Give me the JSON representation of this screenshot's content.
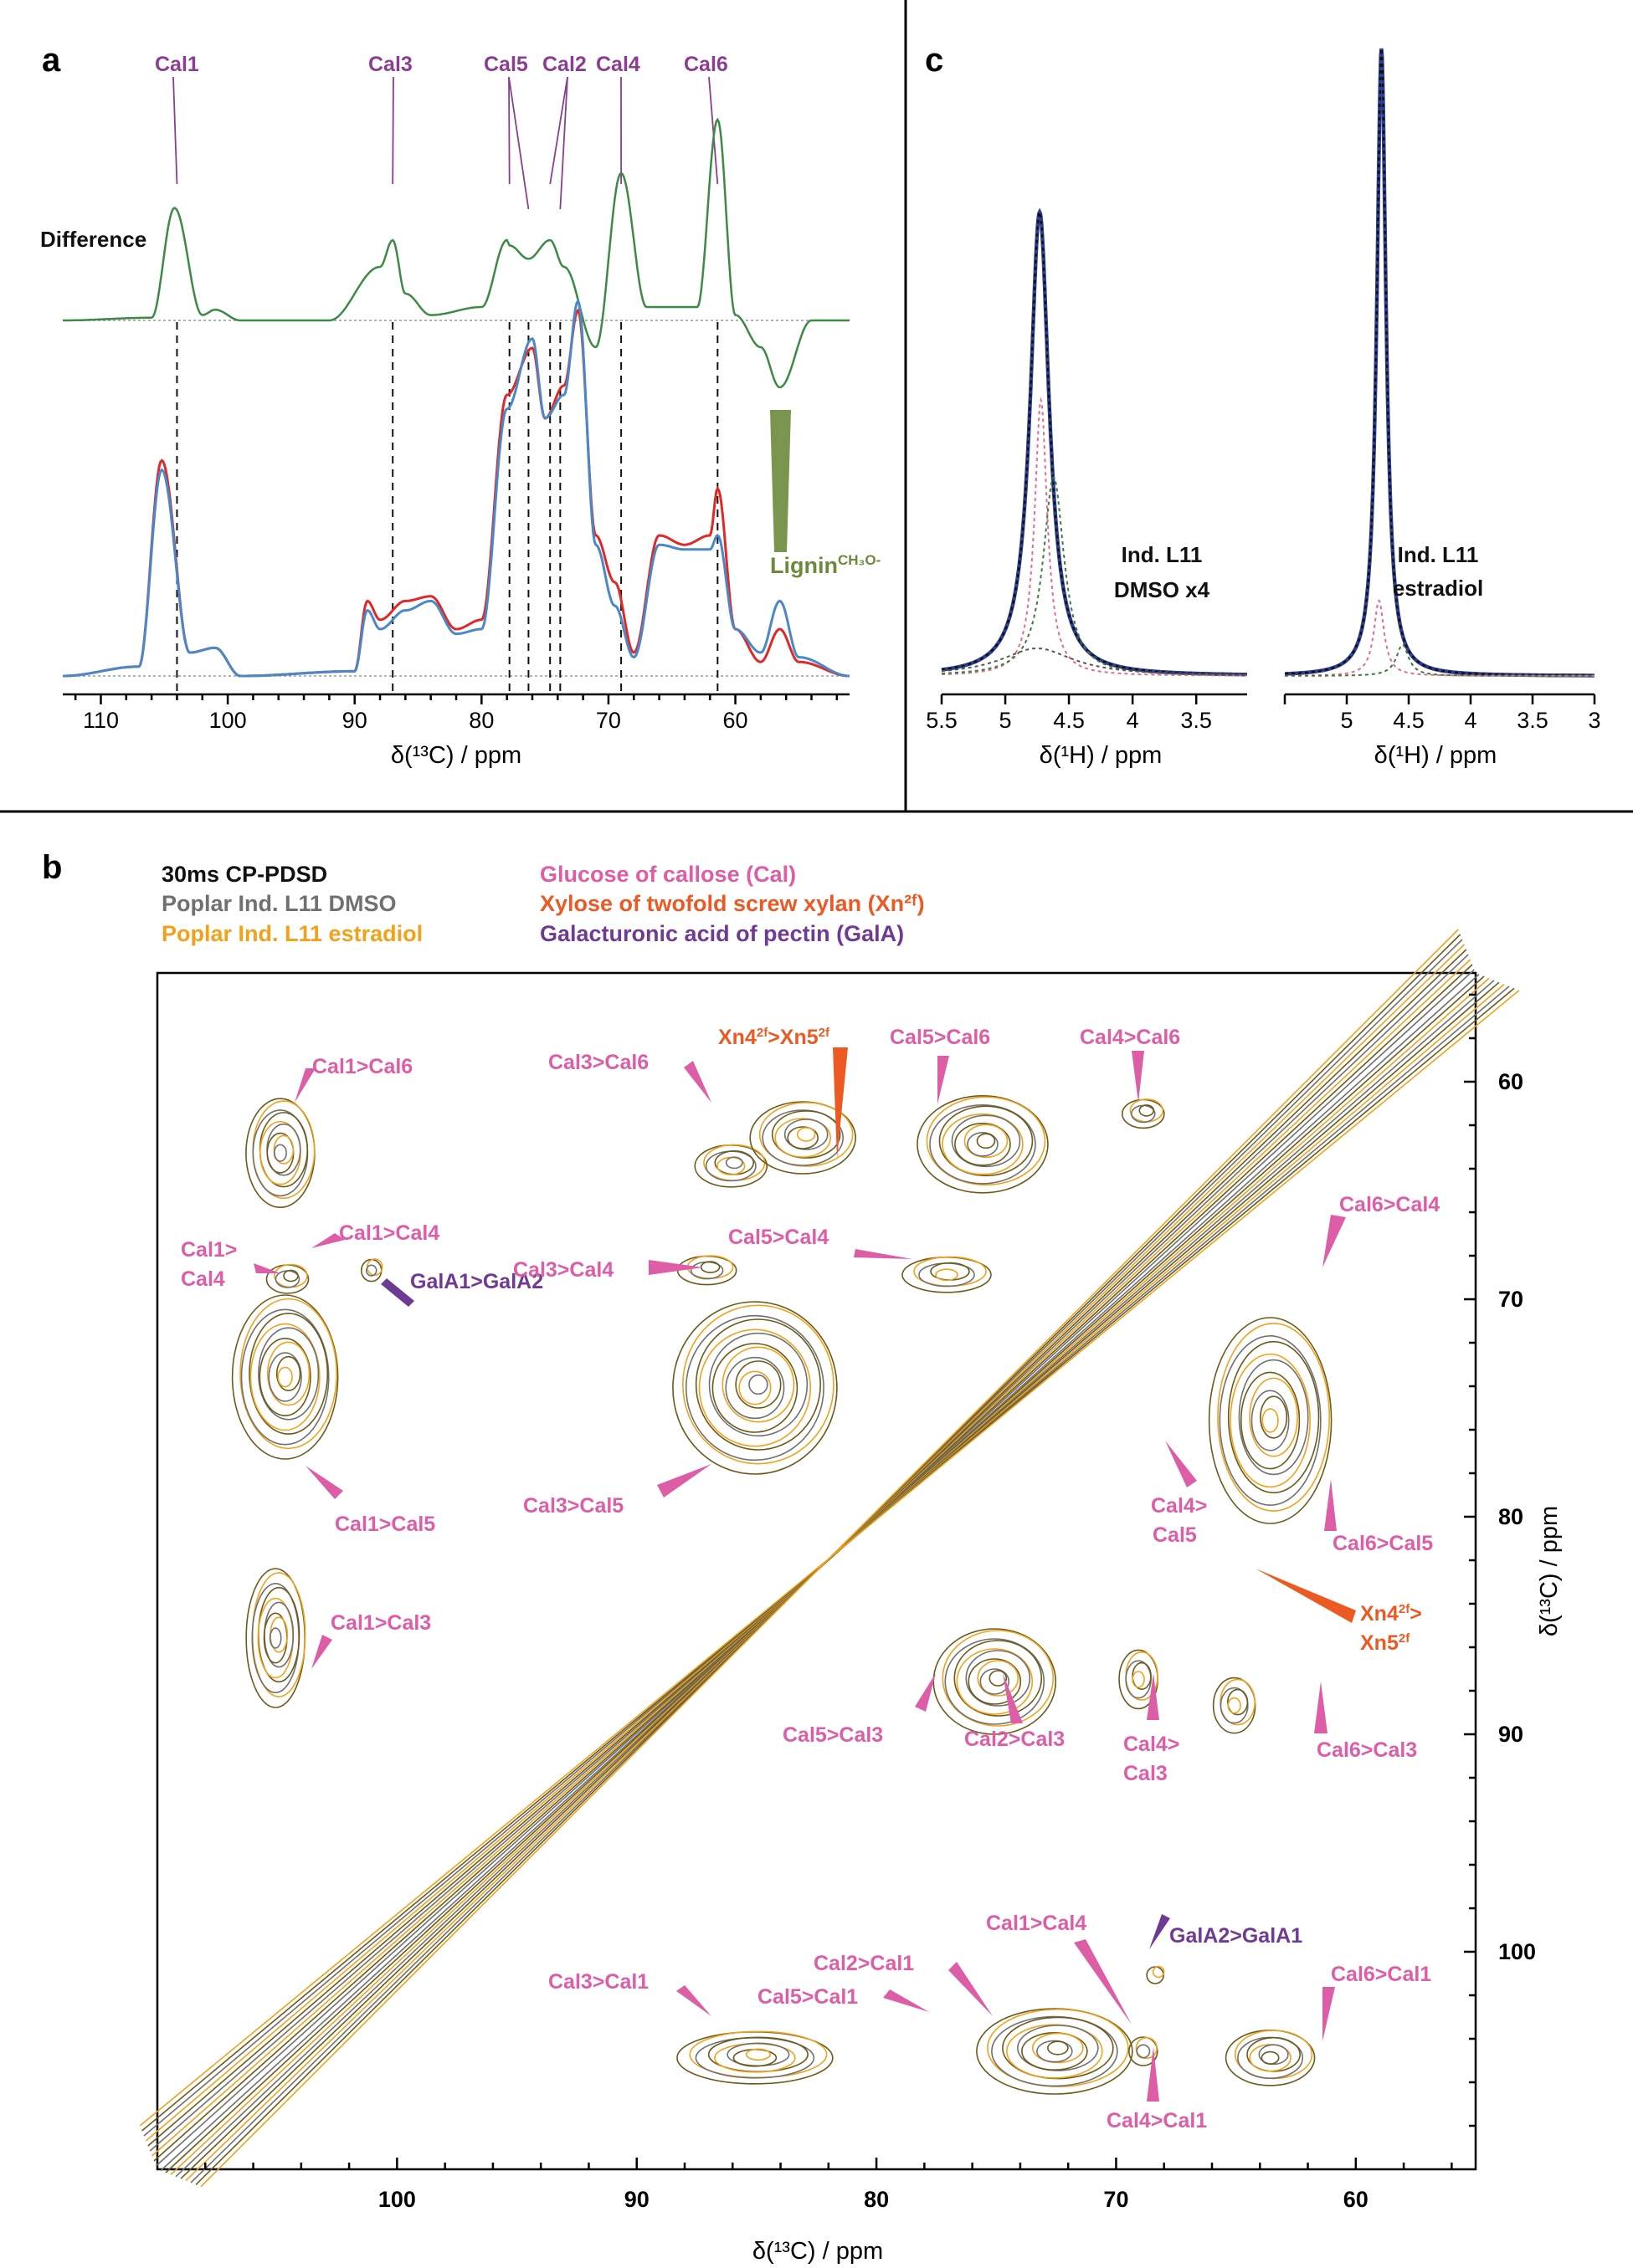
{
  "panel_a": {
    "letter": "a",
    "difference_label": "Difference",
    "lignin_label": "Lignin",
    "lignin_sup": "CH₃O-",
    "xlabel": "δ(¹³C) / ppm",
    "peak_labels": [
      "Cal1",
      "Cal3",
      "Cal5",
      "Cal2",
      "Cal4",
      "Cal6"
    ]
  },
  "panel_b": {
    "letter": "b",
    "legend": [
      {
        "text": "30ms CP-PDSD",
        "color": "#111111"
      },
      {
        "text": "Poplar Ind. L11 DMSO",
        "color": "#707070"
      },
      {
        "text": "Poplar Ind. L11 estradiol",
        "color": "#f1a21a"
      }
    ],
    "assignments": [
      {
        "text": "Glucose of callose (Cal)",
        "color": "#dd5da6"
      },
      {
        "text": "Xylose of twofold screw xylan (Xn²ᶠ)",
        "color": "#ec5a24"
      },
      {
        "text": "Galacturonic acid of pectin (GalA)",
        "color": "#6f3a94"
      }
    ],
    "xlabel": "δ(¹³C) / ppm",
    "ylabel": "δ(¹³C) / ppm",
    "crosspeaks": {
      "cal1_cal6": "Cal1>Cal6",
      "cal1_cal4": "Cal1>Cal4",
      "cal1_cal4_b1": "Cal1>",
      "cal1_cal4_b2": "Cal4",
      "gala1_gala2": "GalA1>GalA2",
      "cal1_cal5": "Cal1>Cal5",
      "cal1_cal3": "Cal1>Cal3",
      "cal3_cal6": "Cal3>Cal6",
      "xn_top_a": "Xn4",
      "xn_top_b": ">Xn5",
      "xn_sup": "2f",
      "cal5_cal6": "Cal5>Cal6",
      "cal4_cal6": "Cal4>Cal6",
      "cal6_cal4": "Cal6>Cal4",
      "cal3_cal4": "Cal3>Cal4",
      "cal5_cal4": "Cal5>Cal4",
      "cal3_cal5": "Cal3>Cal5",
      "cal4_cal5_a": "Cal4>",
      "cal4_cal5_b": "Cal5",
      "cal6_cal5": "Cal6>Cal5",
      "xn_right_a": "Xn4",
      "xn_right_b": "Xn5",
      "cal5_cal3": "Cal5>Cal3",
      "cal2_cal3": "Cal2>Cal3",
      "cal4_cal3_a": "Cal4>",
      "cal4_cal3_b": "Cal3",
      "cal6_cal3": "Cal6>Cal3",
      "cal1_cal4_low": "Cal1>Cal4",
      "gala2_gala1": "GalA2>GalA1",
      "cal2_cal1": "Cal2>Cal1",
      "cal3_cal1": "Cal3>Cal1",
      "cal5_cal1": "Cal5>Cal1",
      "cal6_cal1": "Cal6>Cal1",
      "cal4_cal1": "Cal4>Cal1"
    }
  },
  "panel_c": {
    "letter": "c",
    "xlabel": "δ(¹H) / ppm",
    "left_label": [
      "Ind. L11",
      "DMSO x4"
    ],
    "right_label": [
      "Ind. L11",
      "estradiol"
    ]
  },
  "chart_data": [
    {
      "type": "line",
      "panel": "a",
      "xlabel": "δ(¹³C) / ppm",
      "xlim": [
        113,
        51
      ],
      "xticks": [
        110,
        100,
        90,
        80,
        70,
        60
      ],
      "peak_positions": {
        "Cal1": 104.0,
        "Cal3": 87.0,
        "Cal5": 77.8,
        "Cal2": 74.6,
        "Cal4": 69.0,
        "Cal6": 61.4
      },
      "series": [
        {
          "name": "Difference",
          "color": "#3c8a44",
          "x": [
            113,
            106,
            104.2,
            102,
            101,
            99,
            92,
            88,
            87,
            86,
            84,
            80,
            78,
            77.8,
            76.3,
            74.6,
            73.5,
            71,
            69,
            67,
            63,
            61.4,
            60,
            58,
            56.5,
            54,
            51
          ],
          "y": [
            0,
            0.01,
            0.42,
            0.02,
            0.04,
            0.0,
            0.0,
            0.2,
            0.3,
            0.1,
            0.02,
            0.05,
            0.3,
            0.28,
            0.23,
            0.3,
            0.2,
            -0.1,
            0.55,
            0.05,
            0.05,
            0.75,
            0.02,
            -0.1,
            -0.25,
            0.0,
            0.0
          ]
        },
        {
          "name": "",
          "color": "#e02828",
          "x": [
            113,
            107,
            105.2,
            103,
            101,
            99,
            90,
            89,
            88,
            86,
            84,
            82,
            80,
            78,
            76,
            75,
            73.5,
            72.4,
            71,
            69.5,
            68,
            66,
            64,
            62,
            61.4,
            60,
            58,
            56.5,
            55,
            51
          ],
          "y": [
            0,
            0.02,
            0.46,
            0.05,
            0.06,
            0,
            0.01,
            0.16,
            0.12,
            0.16,
            0.17,
            0.1,
            0.12,
            0.6,
            0.7,
            0.55,
            0.62,
            0.78,
            0.3,
            0.2,
            0.05,
            0.3,
            0.28,
            0.3,
            0.4,
            0.1,
            0.03,
            0.1,
            0.03,
            0
          ]
        },
        {
          "name": "",
          "color": "#4a88c8",
          "x": [
            113,
            107,
            105.2,
            103,
            101,
            99,
            90,
            89,
            88,
            86,
            84,
            82,
            80,
            78,
            76,
            75,
            73.5,
            72.4,
            71,
            69.5,
            68,
            66,
            64,
            62,
            61.4,
            60,
            58,
            56.5,
            55,
            51
          ],
          "y": [
            0,
            0.02,
            0.44,
            0.05,
            0.06,
            0,
            0.01,
            0.14,
            0.1,
            0.14,
            0.16,
            0.09,
            0.1,
            0.57,
            0.72,
            0.55,
            0.6,
            0.8,
            0.28,
            0.15,
            0.04,
            0.28,
            0.27,
            0.27,
            0.3,
            0.1,
            0.05,
            0.16,
            0.04,
            0
          ]
        }
      ]
    },
    {
      "type": "line",
      "panel": "c-left",
      "xlabel": "δ(¹H) / ppm",
      "xlim": [
        5.5,
        3.1
      ],
      "xticks": [
        5.5,
        5,
        4.5,
        4,
        3.5
      ],
      "series": [
        {
          "name": "",
          "color": "#2e3f92",
          "center": 4.73,
          "width": 0.09,
          "height": 0.84
        },
        {
          "name": "",
          "color": "#e36d8a",
          "center": 4.72,
          "width": 0.06,
          "height": 0.5
        },
        {
          "name": "",
          "color": "#3d7a3d",
          "center": 4.62,
          "width": 0.1,
          "height": 0.36
        },
        {
          "name": "",
          "color": "#555555",
          "center": 4.75,
          "width": 0.35,
          "height": 0.05
        }
      ]
    },
    {
      "type": "line",
      "panel": "c-right",
      "xlabel": "δ(¹H) / ppm",
      "xlim": [
        5.5,
        3.0
      ],
      "xticks": [
        5,
        4.5,
        4,
        3.5,
        3
      ],
      "series": [
        {
          "name": "",
          "color": "#2e3f92",
          "center": 4.72,
          "width": 0.045,
          "height": 1.0
        },
        {
          "name": "",
          "color": "#e36d8a",
          "center": 4.74,
          "width": 0.05,
          "height": 0.12
        },
        {
          "name": "",
          "color": "#3d7a3d",
          "center": 4.55,
          "width": 0.06,
          "height": 0.05
        }
      ]
    },
    {
      "type": "heatmap",
      "panel": "b",
      "xlabel": "δ(¹³C) / ppm",
      "ylabel": "δ(¹³C) / ppm",
      "xlim": [
        110,
        55
      ],
      "ylim": [
        55,
        110
      ],
      "xticks": [
        100,
        90,
        80,
        70,
        60
      ],
      "yticks": [
        60,
        70,
        80,
        90,
        100
      ],
      "series": [
        {
          "name": "Poplar Ind. L11 DMSO",
          "color": "#707070"
        },
        {
          "name": "Poplar Ind. L11 estradiol",
          "color": "#f1a21a"
        }
      ],
      "crosspeaks": [
        {
          "label": "Cal1>Cal6",
          "x": 104.8,
          "y": 61.5
        },
        {
          "label": "Cal1>Cal4",
          "x": 104.5,
          "y": 69
        },
        {
          "label": "GalA1>GalA2",
          "x": 101,
          "y": 68.6
        },
        {
          "label": "Cal1>Cal5",
          "x": 105,
          "y": 74
        },
        {
          "label": "Cal1>Cal3",
          "x": 105,
          "y": 86
        },
        {
          "label": "Cal3>Cal6",
          "x": 87,
          "y": 61.5
        },
        {
          "label": "Xn4>Xn5",
          "x": 81.5,
          "y": 63.8
        },
        {
          "label": "Cal5>Cal6",
          "x": 77.5,
          "y": 61.5
        },
        {
          "label": "Cal4>Cal6",
          "x": 68.8,
          "y": 61.3
        },
        {
          "label": "Cal6>Cal4",
          "x": 61.5,
          "y": 69
        },
        {
          "label": "Cal3>Cal4",
          "x": 87,
          "y": 68.6
        },
        {
          "label": "Cal5>Cal4",
          "x": 77.5,
          "y": 68.8
        },
        {
          "label": "Cal3>Cal5",
          "x": 87,
          "y": 77.2
        },
        {
          "label": "Cal4>Cal5",
          "x": 68.6,
          "y": 78
        },
        {
          "label": "Cal6>Cal5",
          "x": 61.4,
          "y": 78
        },
        {
          "label": "Cal5>Cal3",
          "x": 77.5,
          "y": 87.5
        },
        {
          "label": "Cal2>Cal3",
          "x": 74.5,
          "y": 87
        },
        {
          "label": "Cal4>Cal3",
          "x": 69,
          "y": 87.5
        },
        {
          "label": "Cal6>Cal3",
          "x": 61.4,
          "y": 87
        },
        {
          "label": "Cal3>Cal1",
          "x": 87,
          "y": 104.5
        },
        {
          "label": "Cal5>Cal1",
          "x": 77.5,
          "y": 104.5
        },
        {
          "label": "Cal2>Cal1",
          "x": 74.6,
          "y": 103.5
        },
        {
          "label": "Cal1>Cal4",
          "x": 69.5,
          "y": 104.5
        },
        {
          "label": "GalA2>GalA1",
          "x": 68.3,
          "y": 101
        },
        {
          "label": "Cal4>Cal1",
          "x": 68.8,
          "y": 104.5
        },
        {
          "label": "Cal6>Cal1",
          "x": 61.4,
          "y": 104.5
        }
      ]
    }
  ]
}
